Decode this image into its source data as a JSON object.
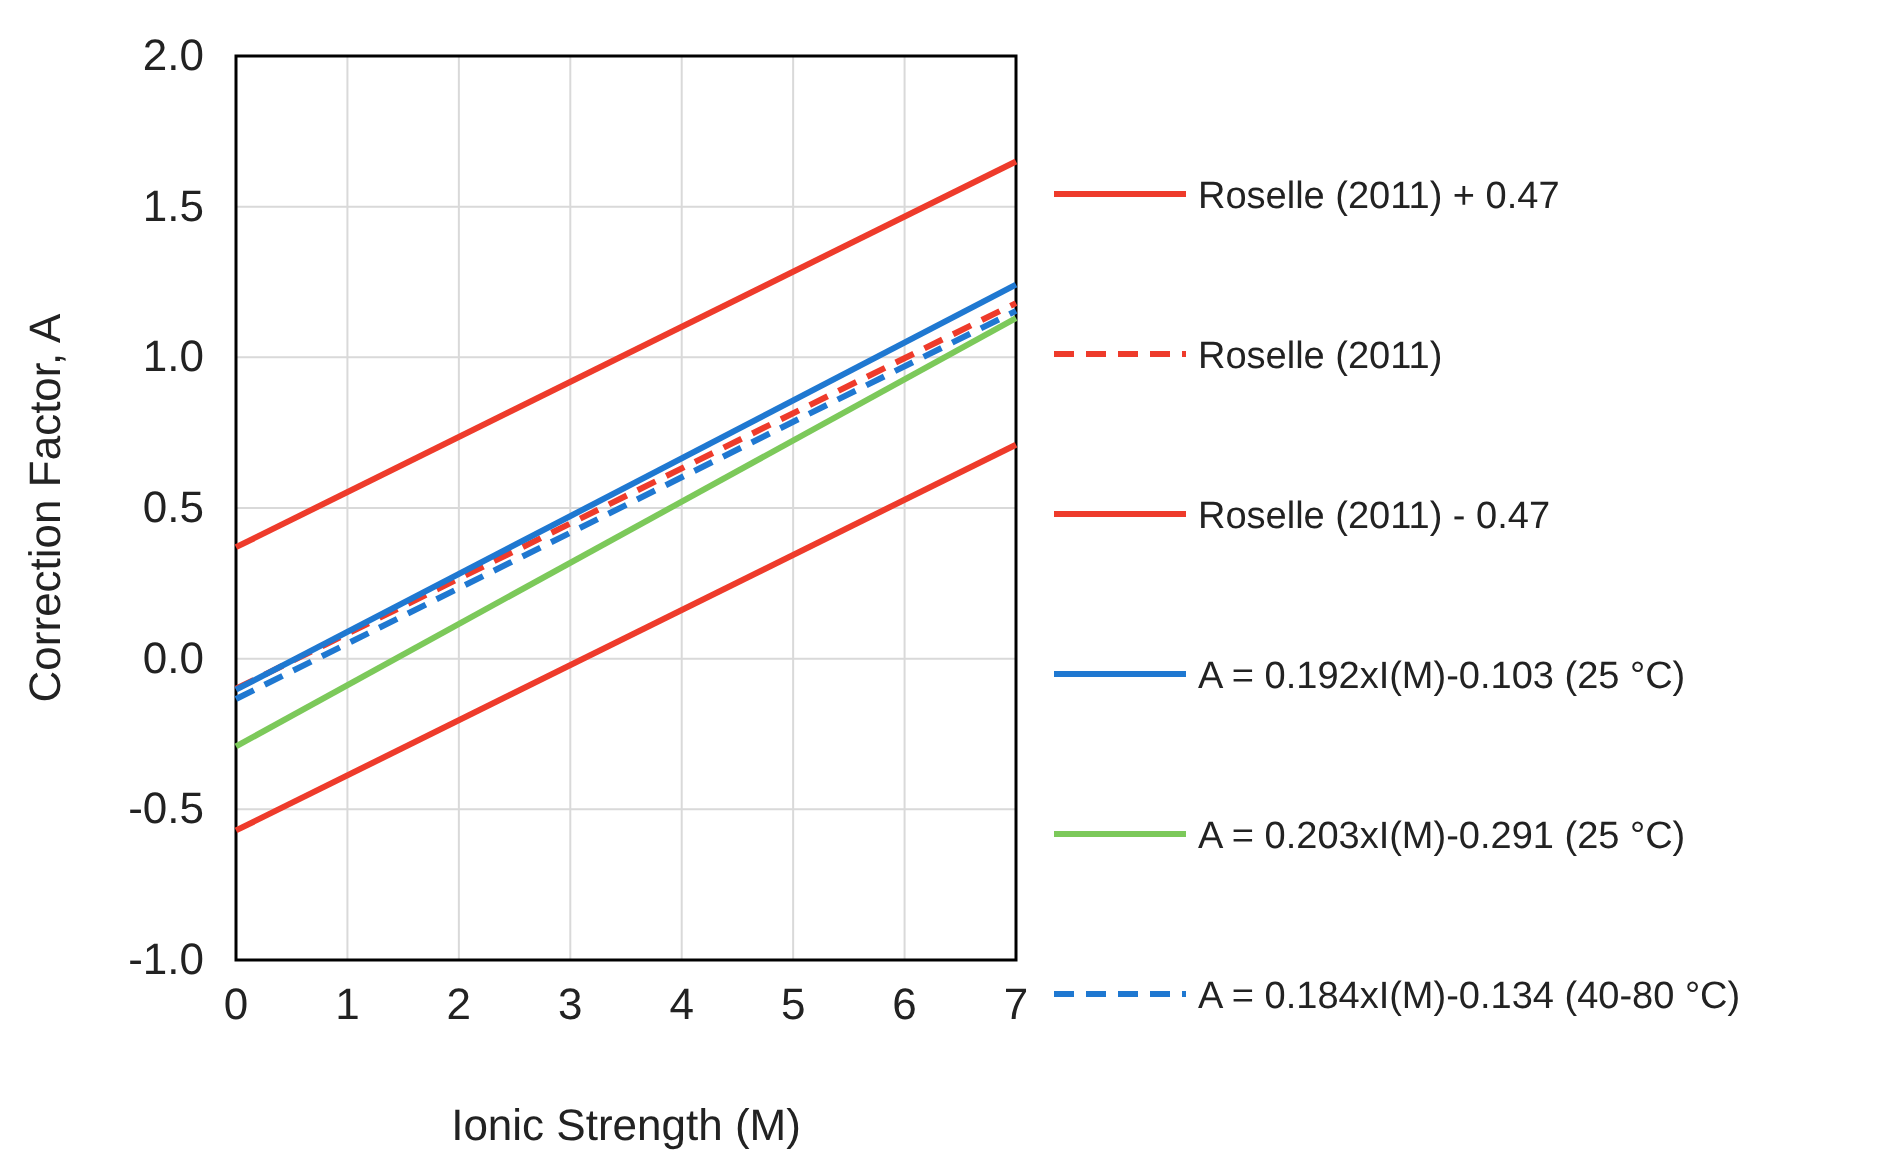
{
  "chart_data": {
    "type": "line",
    "xlabel": "Ionic Strength (M)",
    "ylabel": "Correction Factor, A",
    "x": [
      0,
      7
    ],
    "xlim": [
      0,
      7
    ],
    "xticks": [
      0,
      1,
      2,
      3,
      4,
      5,
      6,
      7
    ],
    "ylim": [
      -1.0,
      2.0
    ],
    "yticks": [
      {
        "value": -1.0,
        "label": "-1.0"
      },
      {
        "value": -0.5,
        "label": "-0.5"
      },
      {
        "value": 0,
        "label": "0.0"
      },
      {
        "value": 0.5,
        "label": "0.5"
      },
      {
        "value": 1.0,
        "label": "1.0"
      },
      {
        "value": 1.5,
        "label": "1.5"
      },
      {
        "value": 2.0,
        "label": "2.0"
      }
    ],
    "grid": true,
    "legend": "right",
    "marker": "none",
    "series": [
      {
        "name": "Roselle (2011) + 0.47",
        "color": "#ee3b2b",
        "line_style": "solid",
        "values": [
          0.37,
          1.65
        ]
      },
      {
        "name": "Roselle (2011)",
        "color": "#ee3b2b",
        "line_style": "dashed",
        "values": [
          -0.1,
          1.18
        ]
      },
      {
        "name": "Roselle (2011) - 0.47",
        "color": "#ee3b2b",
        "line_style": "solid",
        "values": [
          -0.57,
          0.71
        ]
      },
      {
        "name": "A = 0.192xI(M)-0.103 (25 °C)",
        "color": "#1f78d1",
        "line_style": "solid",
        "values": [
          -0.103,
          1.241
        ]
      },
      {
        "name": "A = 0.203xI(M)-0.291 (25 °C)",
        "color": "#7cc95a",
        "line_style": "solid",
        "values": [
          -0.291,
          1.13
        ]
      },
      {
        "name": "A = 0.184xI(M)-0.134 (40-80 °C)",
        "color": "#1f78d1",
        "line_style": "dashed",
        "values": [
          -0.134,
          1.154
        ]
      }
    ]
  }
}
